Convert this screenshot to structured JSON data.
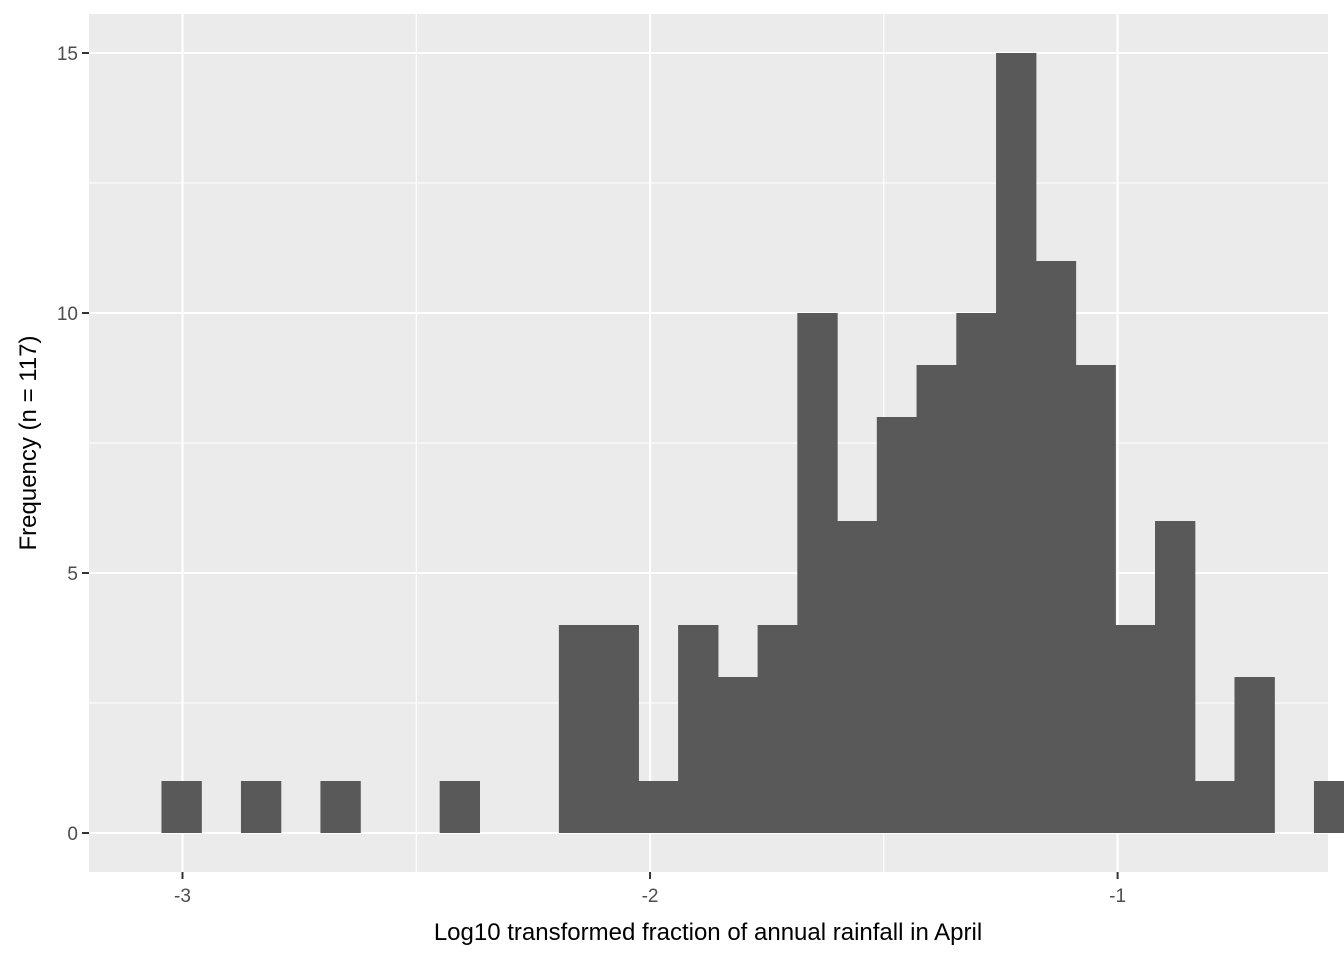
{
  "chart_data": {
    "type": "bar",
    "title": "",
    "xlabel": "Log10 transformed fraction of annual rainfall in April",
    "ylabel": "Frequency (n = 117)",
    "bin_width": 0.085,
    "bin_starts": [
      -3.045,
      -2.96,
      -2.875,
      -2.79,
      -2.705,
      -2.62,
      -2.535,
      -2.45,
      -2.365,
      -2.28,
      -2.195,
      -2.11,
      -2.025,
      -1.94,
      -1.855,
      -1.77,
      -1.685,
      -1.6,
      -1.515,
      -1.43,
      -1.345,
      -1.26,
      -1.175,
      -1.09,
      -1.005,
      -0.92,
      -0.835,
      -0.75,
      -0.665,
      -0.58
    ],
    "values": [
      1,
      0,
      1,
      0,
      1,
      0,
      0,
      1,
      0,
      0,
      4,
      4,
      1,
      4,
      3,
      4,
      10,
      6,
      8,
      9,
      10,
      15,
      11,
      9,
      4,
      6,
      1,
      3,
      0,
      1
    ],
    "xlim": [
      -3.2,
      -0.55
    ],
    "ylim": [
      -0.75,
      15.75
    ],
    "x_ticks": [
      {
        "value": -3,
        "label": "-3"
      },
      {
        "value": -2,
        "label": "-2"
      },
      {
        "value": -1,
        "label": "-1"
      }
    ],
    "x_minor_ticks": [
      -2.5,
      -1.5,
      -0.5
    ],
    "y_ticks": [
      {
        "value": 0,
        "label": "0"
      },
      {
        "value": 5,
        "label": "5"
      },
      {
        "value": 10,
        "label": "10"
      },
      {
        "value": 15,
        "label": "15"
      }
    ],
    "y_minor_ticks": [
      2.5,
      7.5,
      12.5
    ],
    "grid": true,
    "legend": "none",
    "colors": {
      "panel": "#ebebeb",
      "grid": "#ffffff",
      "bar": "#595959",
      "tick": "#333333"
    }
  }
}
